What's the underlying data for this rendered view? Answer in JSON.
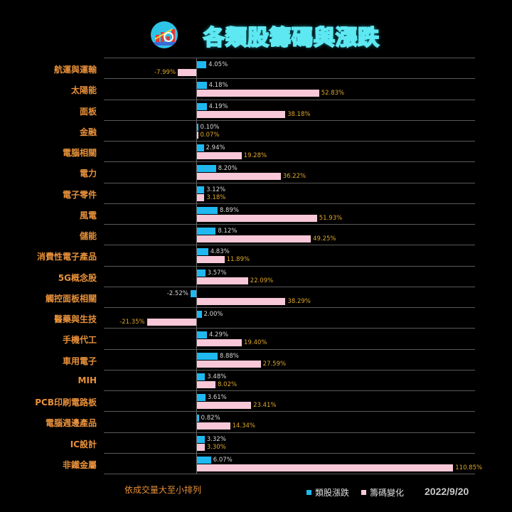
{
  "header": {
    "title": "各類股籌碼與漲跌",
    "logo_icon": "stock-chart-logo-icon"
  },
  "chart_data": {
    "type": "bar",
    "orientation": "horizontal",
    "title": "各類股籌碼與漲跌",
    "categories": [
      "航運與運輸",
      "太陽能",
      "面板",
      "金融",
      "電腦相關",
      "電力",
      "電子零件",
      "風電",
      "儲能",
      "消費性電子產品",
      "5G概念股",
      "觸控面板相關",
      "醫藥與生技",
      "手機代工",
      "車用電子",
      "MIH",
      "PCB印刷電路板",
      "電腦週邊產品",
      "IC設計",
      "非鐵金屬"
    ],
    "series": [
      {
        "name": "類股漲跌",
        "color": "#1fb8f0",
        "values": [
          4.05,
          4.18,
          4.19,
          0.1,
          2.94,
          8.2,
          3.12,
          8.89,
          8.12,
          4.83,
          3.57,
          -2.52,
          2.0,
          4.29,
          8.88,
          3.48,
          3.61,
          0.82,
          3.32,
          6.07
        ]
      },
      {
        "name": "籌碼變化",
        "color": "#f8c8d8",
        "values": [
          -7.99,
          52.83,
          38.18,
          0.07,
          19.28,
          36.22,
          3.18,
          51.93,
          49.25,
          11.89,
          22.09,
          38.29,
          -21.35,
          19.4,
          27.59,
          8.02,
          23.41,
          14.34,
          3.3,
          110.85
        ]
      }
    ],
    "labels": {
      "stock": [
        "4.05%",
        "4.18%",
        "4.19%",
        "0.10%",
        "2.94%",
        "8.20%",
        "3.12%",
        "8.89%",
        "8.12%",
        "4.83%",
        "3.57%",
        "-2.52%",
        "2.00%",
        "4.29%",
        "8.88%",
        "3.48%",
        "3.61%",
        "0.82%",
        "3.32%",
        "6.07%"
      ],
      "chip": [
        "-7.99%",
        "52.83%",
        "38.18%",
        "0.07%",
        "19.28%",
        "36.22%",
        "3.18%",
        "51.93%",
        "49.25%",
        "11.89%",
        "22.09%",
        "38.29%",
        "-21.35%",
        "19.40%",
        "27.59%",
        "8.02%",
        "23.41%",
        "14.34%",
        "3.30%",
        "110.85%"
      ]
    },
    "xlabel": "",
    "ylabel": "",
    "grid": true,
    "legend_position": "bottom-right"
  },
  "footer": {
    "sort_note": "依成交量大至小排列",
    "legend": [
      {
        "label": "類股漲跌",
        "color": "#1fb8f0"
      },
      {
        "label": "籌碼變化",
        "color": "#f8c8d8"
      }
    ],
    "date": "2022/9/20"
  }
}
